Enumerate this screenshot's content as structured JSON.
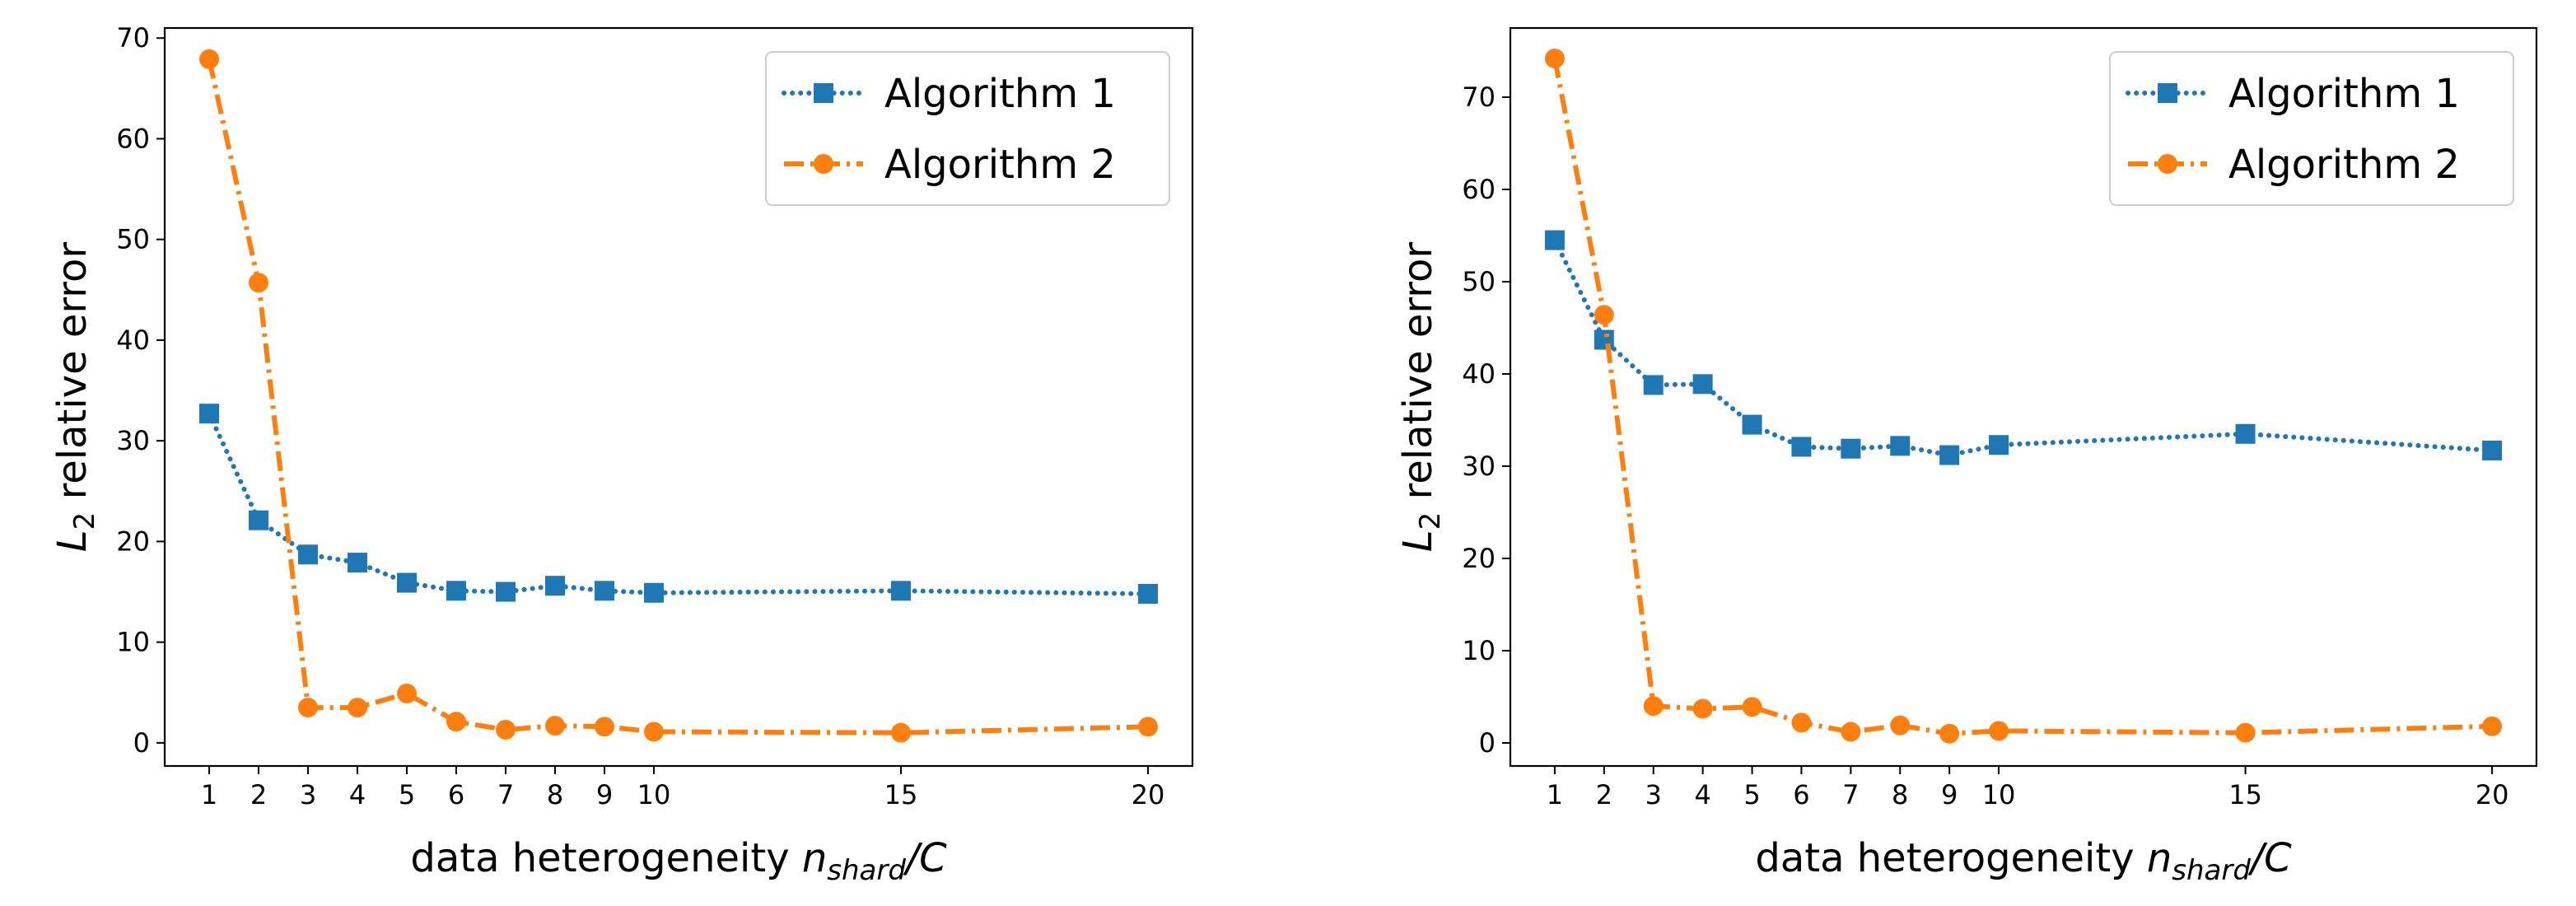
{
  "chart_data": [
    {
      "type": "line",
      "title": "",
      "xlabel_parts": [
        "data heterogeneity ",
        "n",
        "shard",
        "/C"
      ],
      "ylabel_parts": [
        "L",
        "2",
        " relative error"
      ],
      "xlim": [
        0.1,
        20.9
      ],
      "ylim": [
        -2.3,
        71.0
      ],
      "xticks": [
        1,
        2,
        3,
        4,
        5,
        6,
        7,
        8,
        9,
        10,
        15,
        20
      ],
      "yticks": [
        0,
        10,
        20,
        30,
        40,
        50,
        60,
        70
      ],
      "legend_position": "top-right",
      "x": [
        1,
        2,
        3,
        4,
        5,
        6,
        7,
        8,
        9,
        10,
        15,
        20
      ],
      "series": [
        {
          "name": "Algorithm 1",
          "color": "#1f77b4",
          "marker": "square",
          "linestyle": "dotted",
          "values": [
            32.7,
            22.1,
            18.7,
            17.9,
            15.9,
            15.1,
            15.0,
            15.6,
            15.1,
            14.9,
            15.1,
            14.8
          ]
        },
        {
          "name": "Algorithm 2",
          "color": "#ff7f0e",
          "marker": "circle",
          "linestyle": "dashdot",
          "values": [
            67.9,
            45.7,
            3.5,
            3.5,
            4.9,
            2.1,
            1.3,
            1.7,
            1.6,
            1.1,
            1.0,
            1.6
          ]
        }
      ]
    },
    {
      "type": "line",
      "title": "",
      "xlabel_parts": [
        "data heterogeneity ",
        "n",
        "shard",
        "/C"
      ],
      "ylabel_parts": [
        "L",
        "2",
        " relative error"
      ],
      "xlim": [
        0.1,
        20.9
      ],
      "ylim": [
        -2.5,
        77.5
      ],
      "xticks": [
        1,
        2,
        3,
        4,
        5,
        6,
        7,
        8,
        9,
        10,
        15,
        20
      ],
      "yticks": [
        0,
        10,
        20,
        30,
        40,
        50,
        60,
        70
      ],
      "legend_position": "top-right",
      "x": [
        1,
        2,
        3,
        4,
        5,
        6,
        7,
        8,
        9,
        10,
        15,
        20
      ],
      "series": [
        {
          "name": "Algorithm 1",
          "color": "#1f77b4",
          "marker": "square",
          "linestyle": "dotted",
          "values": [
            54.5,
            43.7,
            38.8,
            38.9,
            34.5,
            32.1,
            31.9,
            32.2,
            31.2,
            32.3,
            33.5,
            31.7
          ]
        },
        {
          "name": "Algorithm 2",
          "color": "#ff7f0e",
          "marker": "circle",
          "linestyle": "dashdot",
          "values": [
            74.2,
            46.4,
            4.0,
            3.7,
            3.9,
            2.2,
            1.2,
            1.9,
            1.0,
            1.3,
            1.1,
            1.8
          ]
        }
      ]
    }
  ]
}
